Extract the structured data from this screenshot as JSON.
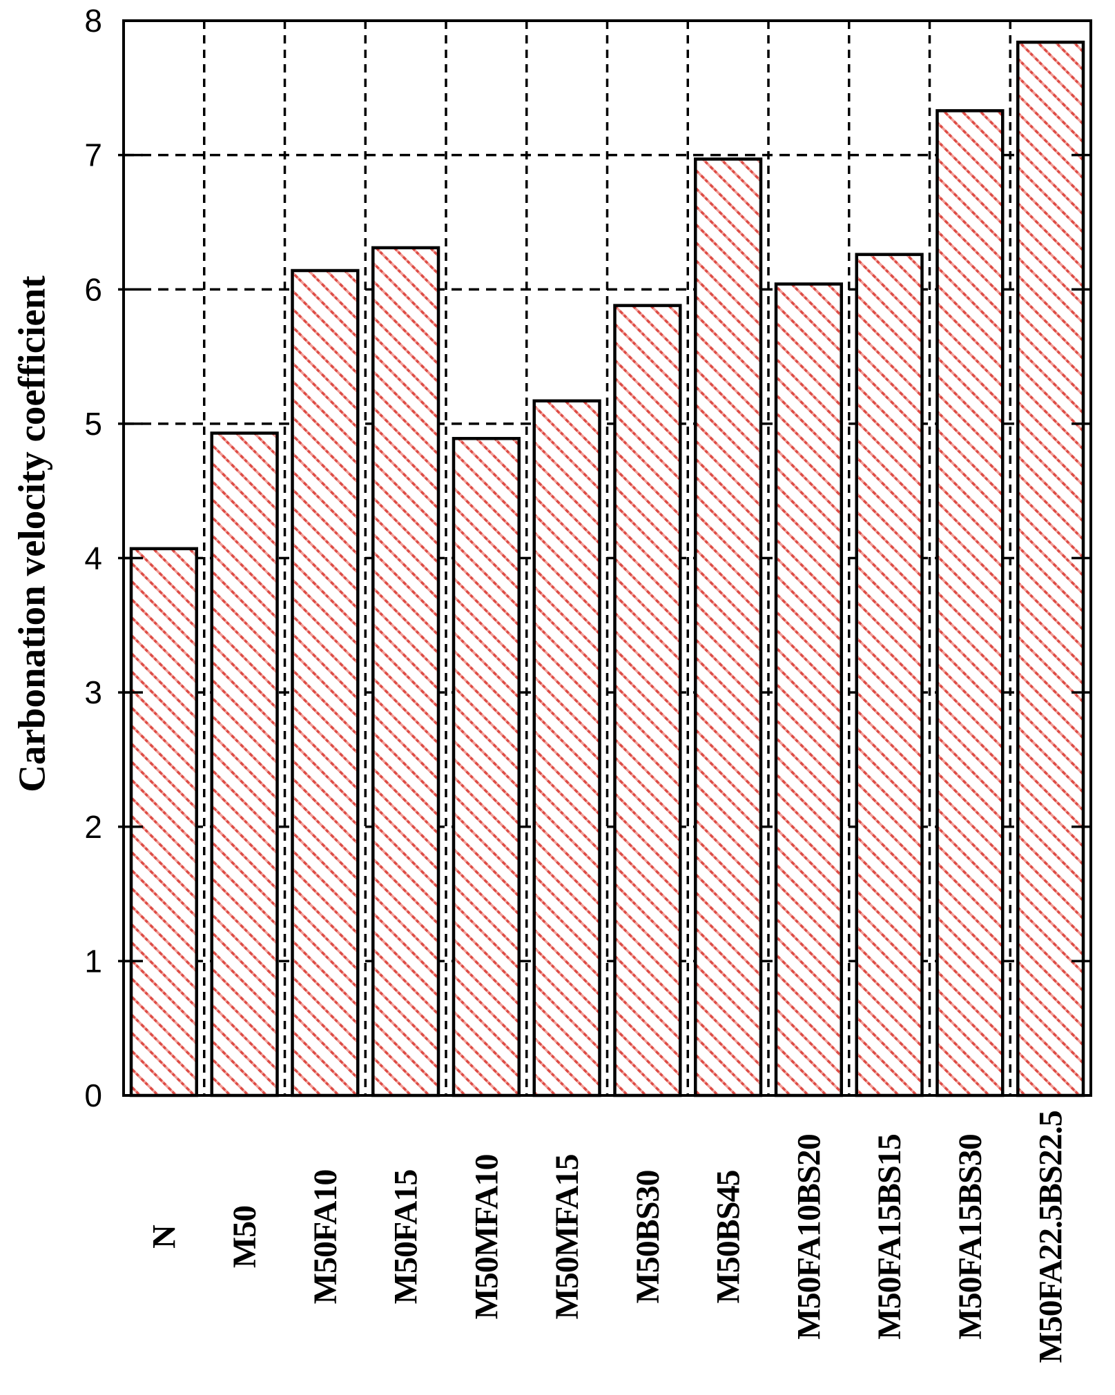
{
  "figure": {
    "background": "#ffffff"
  },
  "chart_data": {
    "type": "bar",
    "title": "",
    "xlabel": "",
    "ylabel": "Carbonation velocity coefficient",
    "categories": [
      "N",
      "M50",
      "M50FA10",
      "M50FA15",
      "M50MFA10",
      "M50MFA15",
      "M50BS30",
      "M50BS45",
      "M50FA10BS20",
      "M50FA15BS15",
      "M50FA15BS30",
      "M50FA22.5BS22.5"
    ],
    "values": [
      4.07,
      4.93,
      6.14,
      6.31,
      4.89,
      5.17,
      5.88,
      6.97,
      6.04,
      6.26,
      7.33,
      7.84
    ],
    "ylim": [
      0,
      8
    ],
    "yticks": [
      0,
      1,
      2,
      3,
      4,
      5,
      6,
      7,
      8
    ],
    "grid": "dashed horizontal gridlines at integers and dashed vertical gridlines between categories, drawn behind bars",
    "legend": "none",
    "x_label_rotation_degrees": -90,
    "bar_style": {
      "fill": "#ffffff",
      "hatch": "diagonal-down",
      "hatch_color_light": "#f19b95",
      "hatch_color_dark": "#dd4b44",
      "border_color": "#000000"
    },
    "axis_color": "#000000",
    "text_color": "#000000"
  }
}
